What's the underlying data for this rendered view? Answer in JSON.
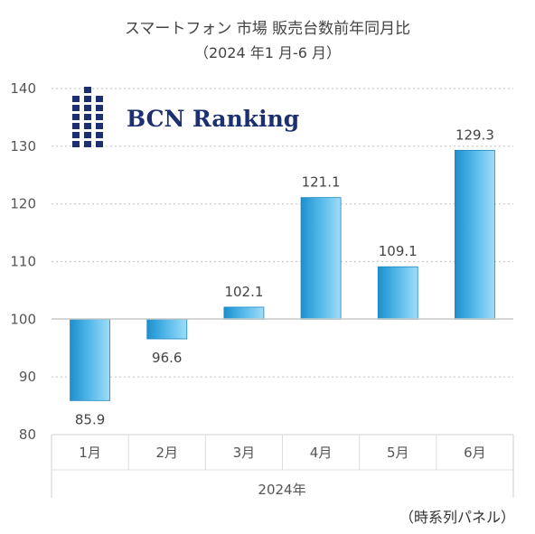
{
  "chart_data": {
    "type": "bar",
    "title": "スマートフォン 市場 販売台数前年同月比",
    "subtitle": "（2024 年1 月-6 月）",
    "categories": [
      "1月",
      "2月",
      "3月",
      "4月",
      "5月",
      "6月"
    ],
    "values": [
      85.9,
      96.6,
      102.1,
      121.1,
      109.1,
      129.3
    ],
    "data_labels": [
      "85.9",
      "96.6",
      "102.1",
      "121.1",
      "109.1",
      "129.3"
    ],
    "baseline": 100,
    "ylim": [
      80,
      140
    ],
    "yticks": [
      "80",
      "90",
      "100",
      "110",
      "120",
      "130",
      "140"
    ],
    "xgroup_label": "2024年",
    "grid": true,
    "bar_color": "#36A8DF",
    "footnote": "（時系列パネル）",
    "logo": {
      "text": "BCN Ranking",
      "color": "#1C2F70"
    }
  }
}
